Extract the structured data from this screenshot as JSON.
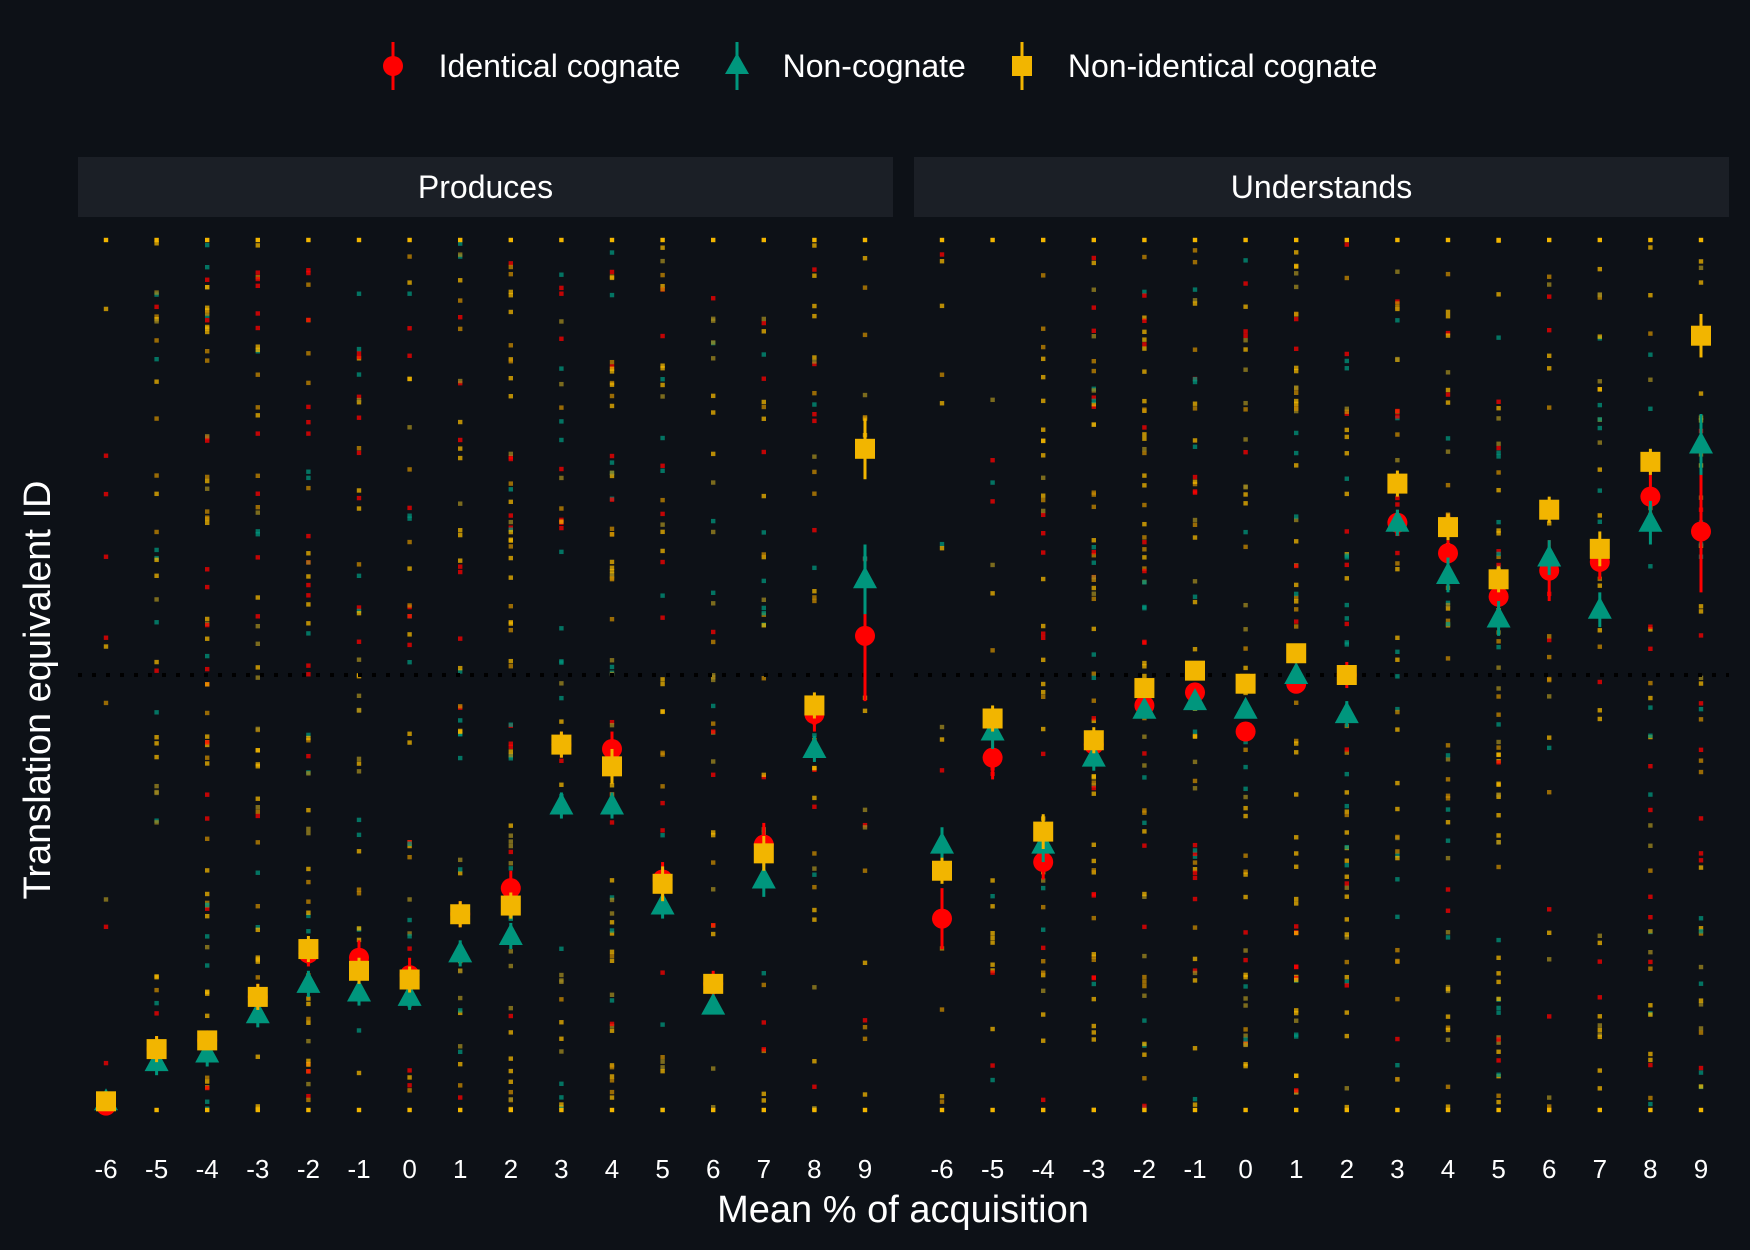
{
  "chart_data": {
    "type": "scatter",
    "colors": {
      "background": "#0d1117",
      "strip": "#1b1f26",
      "Identical cognate": "#ff0000",
      "Non-cognate": "#00967d",
      "Non-identical cognate": "#f2b500"
    },
    "legend": {
      "position": "top",
      "items": [
        {
          "label": "Identical cognate",
          "shape": "circle",
          "color": "#ff0000"
        },
        {
          "label": "Non-cognate",
          "shape": "triangle",
          "color": "#00967d"
        },
        {
          "label": "Non-identical cognate",
          "shape": "square",
          "color": "#f2b500"
        }
      ]
    },
    "xlabel": "Mean % of acquisition",
    "ylabel": "Translation equivalent ID",
    "x_ticks": [
      -6,
      -5,
      -4,
      -3,
      -2,
      -1,
      0,
      1,
      2,
      3,
      4,
      5,
      6,
      7,
      8,
      9
    ],
    "ylim": [
      -1,
      1
    ],
    "reference_line": {
      "y": 0,
      "style": "dotted"
    },
    "grid": false,
    "panels": [
      {
        "title": "Produces",
        "series": [
          {
            "name": "Identical cognate",
            "x": [
              -6,
              -5,
              -4,
              -3,
              -2,
              -1,
              0,
              1,
              2,
              3,
              4,
              5,
              6,
              7,
              8,
              9
            ],
            "y": [
              -0.99,
              -0.86,
              -0.84,
              -0.74,
              -0.64,
              -0.65,
              -0.69,
              -0.55,
              -0.49,
              -0.16,
              -0.17,
              -0.47,
              -0.71,
              -0.39,
              -0.09,
              0.09
            ],
            "err": [
              0.01,
              0.03,
              0.02,
              0.03,
              0.03,
              0.04,
              0.04,
              0.03,
              0.04,
              0.03,
              0.04,
              0.04,
              0.03,
              0.05,
              0.04,
              0.15
            ]
          },
          {
            "name": "Non-cognate",
            "x": [
              -6,
              -5,
              -4,
              -3,
              -2,
              -1,
              0,
              1,
              2,
              3,
              4,
              5,
              6,
              7,
              8,
              9
            ],
            "y": [
              -0.98,
              -0.89,
              -0.87,
              -0.78,
              -0.71,
              -0.73,
              -0.74,
              -0.64,
              -0.6,
              -0.3,
              -0.3,
              -0.53,
              -0.76,
              -0.47,
              -0.17,
              0.22
            ],
            "err": [
              0.01,
              0.03,
              0.03,
              0.03,
              0.03,
              0.03,
              0.03,
              0.03,
              0.03,
              0.03,
              0.03,
              0.03,
              0.02,
              0.04,
              0.03,
              0.08
            ]
          },
          {
            "name": "Non-identical cognate",
            "x": [
              -6,
              -5,
              -4,
              -3,
              -2,
              -1,
              0,
              1,
              2,
              3,
              4,
              5,
              6,
              7,
              8,
              9
            ],
            "y": [
              -0.98,
              -0.86,
              -0.84,
              -0.74,
              -0.63,
              -0.68,
              -0.7,
              -0.55,
              -0.53,
              -0.16,
              -0.21,
              -0.48,
              -0.71,
              -0.41,
              -0.07,
              0.52
            ],
            "err": [
              0.01,
              0.03,
              0.02,
              0.03,
              0.03,
              0.03,
              0.03,
              0.03,
              0.03,
              0.03,
              0.04,
              0.04,
              0.02,
              0.04,
              0.03,
              0.07
            ]
          }
        ]
      },
      {
        "title": "Understands",
        "series": [
          {
            "name": "Identical cognate",
            "x": [
              -6,
              -5,
              -4,
              -3,
              -2,
              -1,
              0,
              1,
              2,
              3,
              4,
              5,
              6,
              7,
              8,
              9
            ],
            "y": [
              -0.56,
              -0.19,
              -0.43,
              -0.16,
              -0.07,
              -0.04,
              -0.13,
              -0.02,
              0.0,
              0.35,
              0.28,
              0.18,
              0.24,
              0.26,
              0.41,
              0.33
            ],
            "err": [
              0.07,
              0.05,
              0.04,
              0.03,
              0.02,
              0.02,
              0.02,
              0.02,
              0.03,
              0.03,
              0.03,
              0.03,
              0.07,
              0.04,
              0.06,
              0.14
            ]
          },
          {
            "name": "Non-cognate",
            "x": [
              -6,
              -5,
              -4,
              -3,
              -2,
              -1,
              0,
              1,
              2,
              3,
              4,
              5,
              6,
              7,
              8,
              9
            ],
            "y": [
              -0.39,
              -0.13,
              -0.39,
              -0.19,
              -0.08,
              -0.06,
              -0.08,
              0.0,
              -0.09,
              0.35,
              0.23,
              0.13,
              0.27,
              0.15,
              0.35,
              0.53
            ],
            "err": [
              0.04,
              0.04,
              0.04,
              0.03,
              0.02,
              0.02,
              0.02,
              0.02,
              0.03,
              0.03,
              0.04,
              0.04,
              0.04,
              0.04,
              0.05,
              0.07
            ]
          },
          {
            "name": "Non-identical cognate",
            "x": [
              -6,
              -5,
              -4,
              -3,
              -2,
              -1,
              0,
              1,
              2,
              3,
              4,
              5,
              6,
              7,
              8,
              9
            ],
            "y": [
              -0.45,
              -0.1,
              -0.36,
              -0.15,
              -0.03,
              0.01,
              -0.02,
              0.05,
              0.0,
              0.44,
              0.34,
              0.22,
              0.38,
              0.29,
              0.49,
              0.78
            ],
            "err": [
              0.03,
              0.03,
              0.04,
              0.03,
              0.02,
              0.02,
              0.02,
              0.02,
              0.02,
              0.03,
              0.03,
              0.03,
              0.03,
              0.04,
              0.03,
              0.05
            ]
          }
        ]
      }
    ]
  }
}
